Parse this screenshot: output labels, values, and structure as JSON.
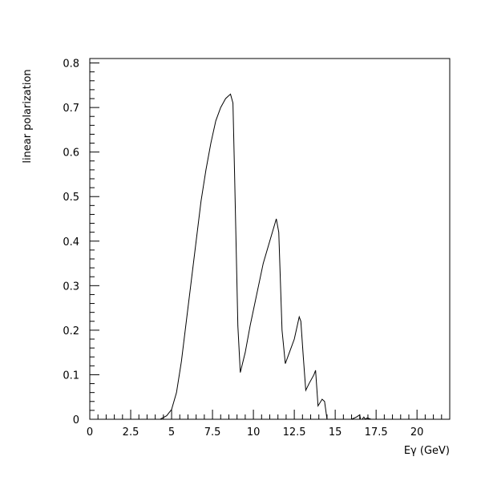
{
  "chart_data": {
    "type": "line",
    "title": "",
    "xlabel": "Eγ (GeV)",
    "ylabel": "linear polarization",
    "xlim": [
      0,
      22
    ],
    "ylim": [
      0,
      0.81
    ],
    "grid": false,
    "legend": "none",
    "x_ticks": [
      0,
      2.5,
      5,
      7.5,
      10,
      12.5,
      15,
      17.5,
      20
    ],
    "x_tick_labels": [
      "0",
      "2.5",
      "5",
      "7.5",
      "10",
      "12.5",
      "15",
      "17.5",
      "20"
    ],
    "y_ticks": [
      0,
      0.1,
      0.2,
      0.3,
      0.4,
      0.5,
      0.6,
      0.7,
      0.8
    ],
    "y_tick_labels": [
      "0",
      "0.1",
      "0.2",
      "0.3",
      "0.4",
      "0.5",
      "0.6",
      "0.7",
      "0.8"
    ],
    "series": [
      {
        "x": [
          3.9,
          4.3,
          4.7,
          5.0,
          5.3,
          5.6,
          5.9,
          6.2,
          6.5,
          6.8,
          7.1,
          7.4,
          7.7,
          8.0,
          8.3,
          8.6,
          8.75,
          8.85,
          9.05,
          9.2,
          9.5,
          9.8,
          10.2,
          10.6,
          11.0,
          11.4,
          11.55,
          11.75,
          11.95,
          12.2,
          12.5,
          12.8,
          12.9,
          13.05,
          13.2,
          13.4,
          13.7,
          13.8,
          13.95,
          14.2,
          14.35,
          14.5,
          15.0,
          16.0,
          16.3,
          16.5,
          16.55,
          16.65,
          16.75,
          16.85,
          16.95,
          17.2,
          22.0
        ],
        "y": [
          0.0,
          0.0,
          0.008,
          0.022,
          0.06,
          0.13,
          0.22,
          0.31,
          0.4,
          0.49,
          0.56,
          0.62,
          0.67,
          0.7,
          0.72,
          0.73,
          0.71,
          0.55,
          0.21,
          0.105,
          0.15,
          0.21,
          0.28,
          0.35,
          0.4,
          0.45,
          0.42,
          0.2,
          0.125,
          0.15,
          0.18,
          0.23,
          0.22,
          0.14,
          0.065,
          0.08,
          0.1,
          0.11,
          0.03,
          0.045,
          0.04,
          0.0,
          0.0,
          0.0,
          0.005,
          0.01,
          0.0,
          0.0,
          0.005,
          0.0,
          0.003,
          0.0,
          0.0
        ]
      }
    ]
  }
}
